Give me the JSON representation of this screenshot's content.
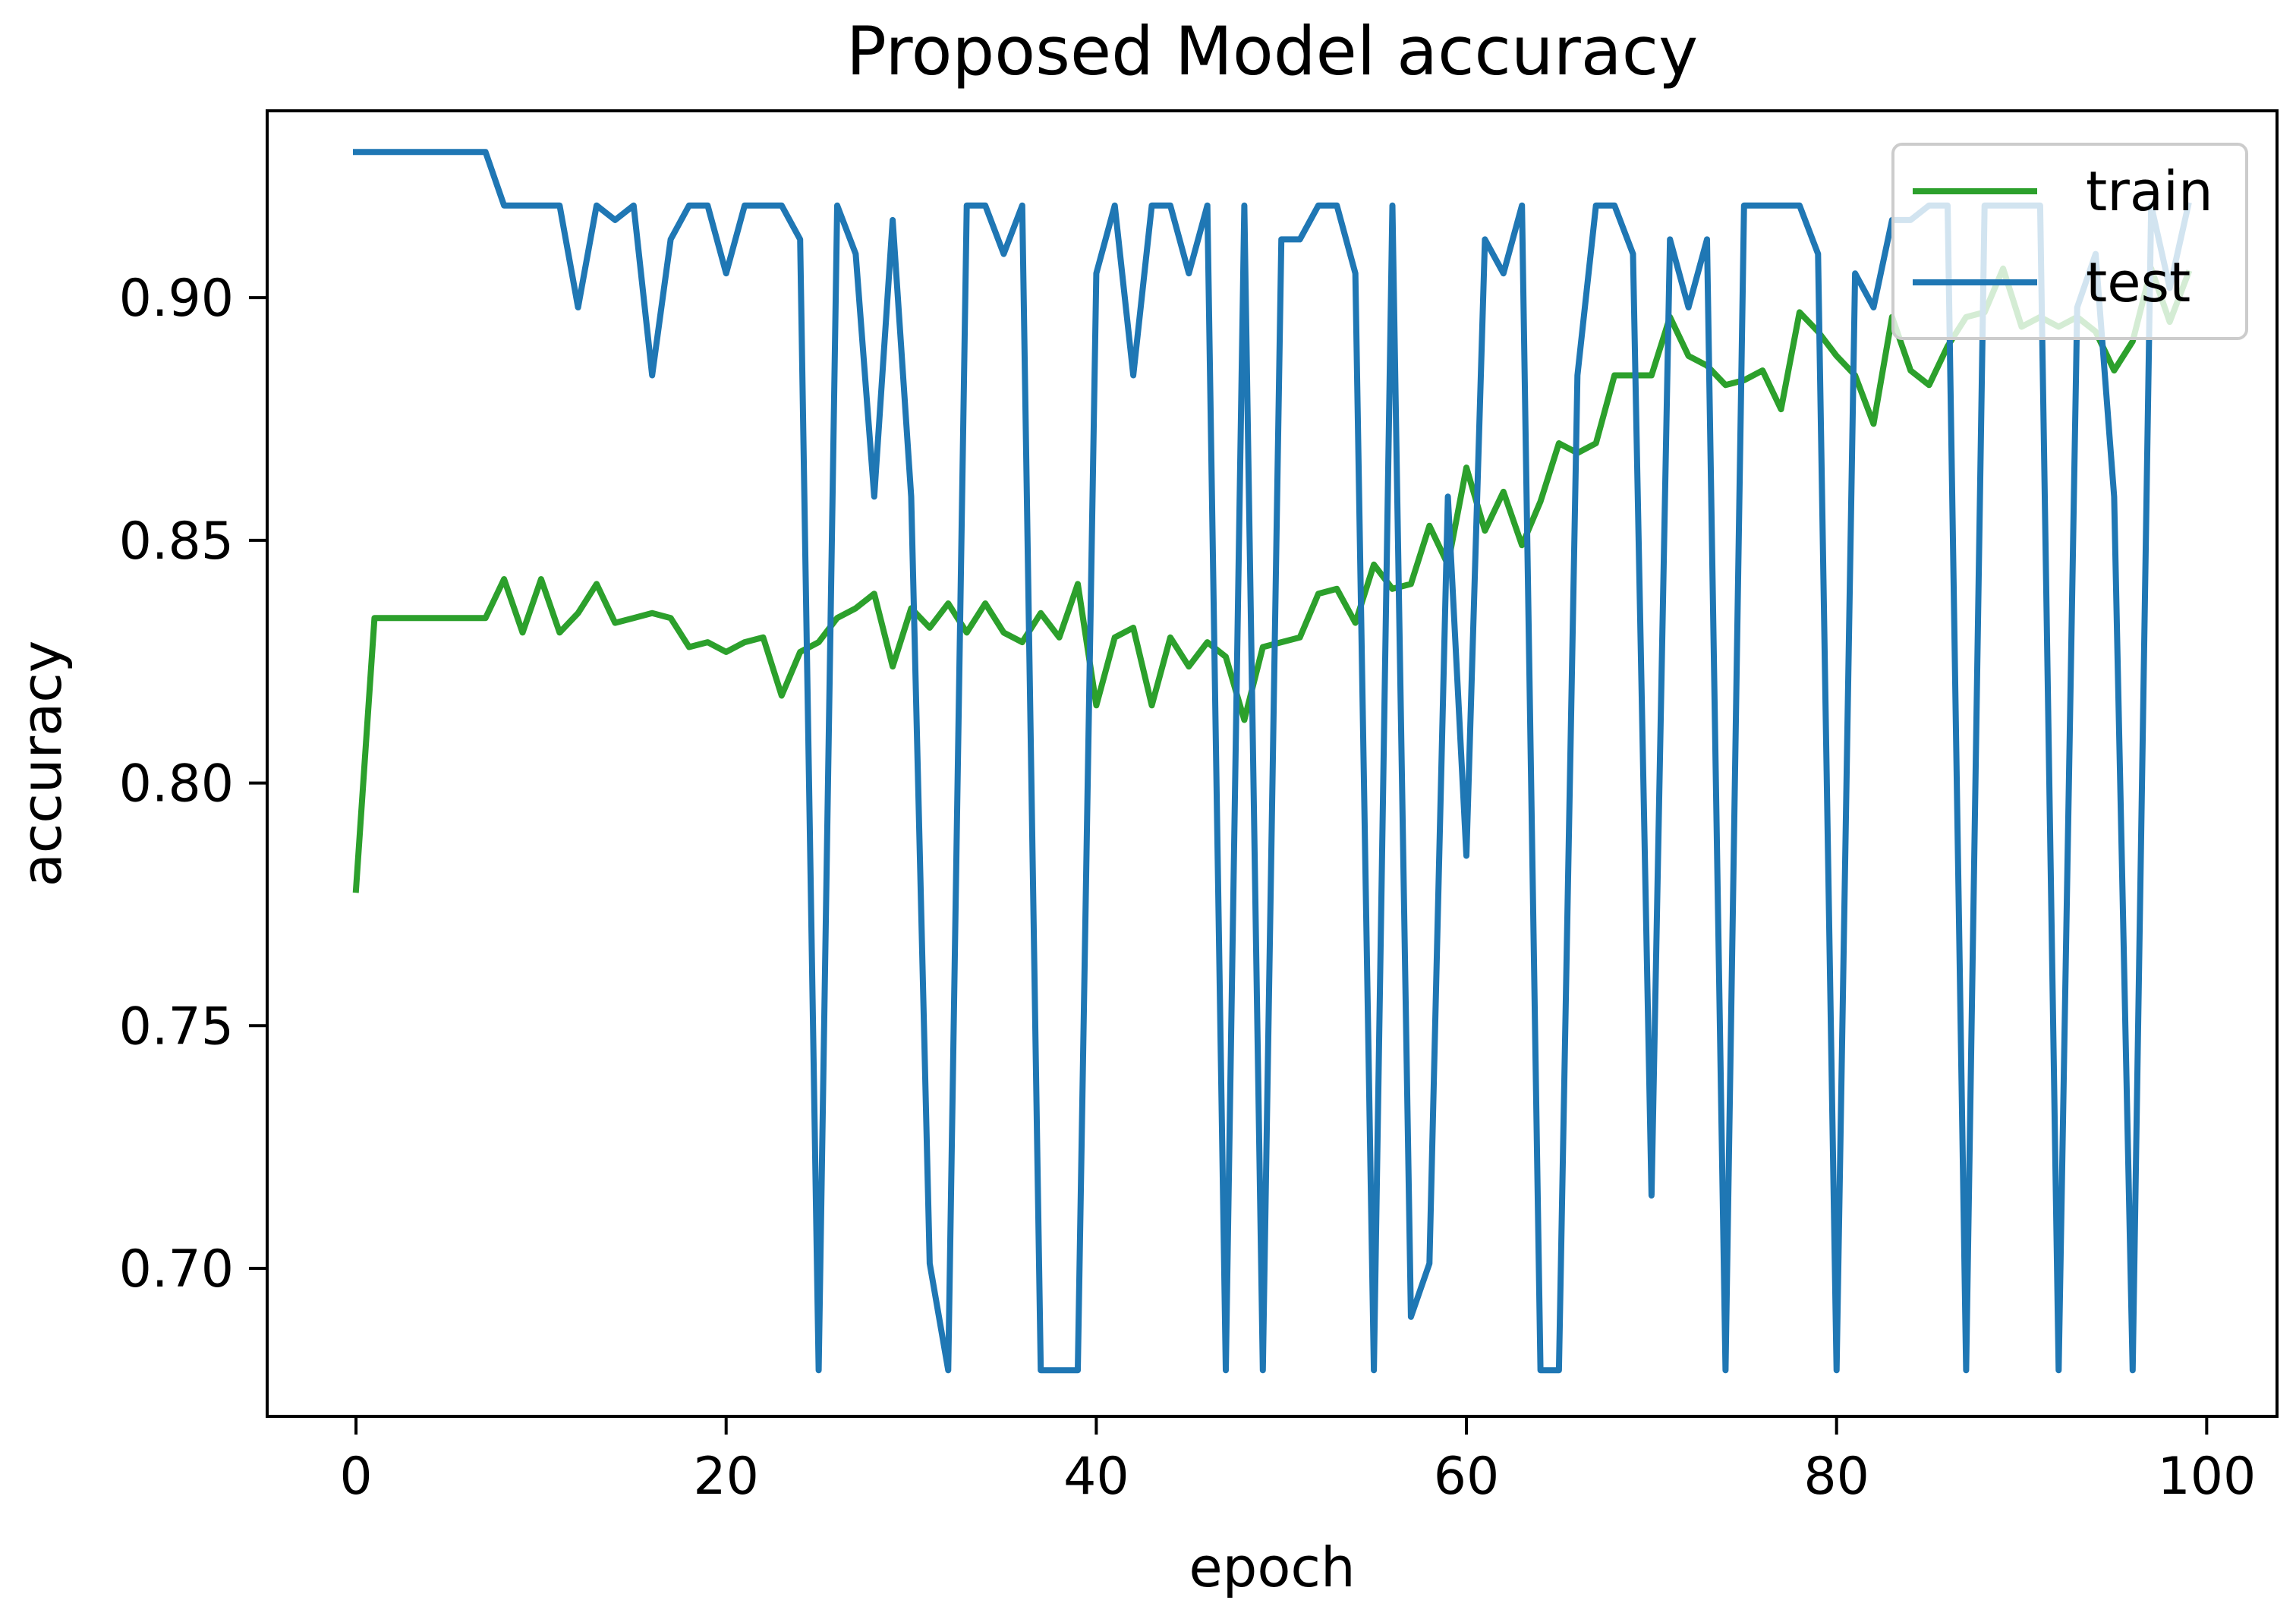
{
  "chart_data": {
    "type": "line",
    "title": "Proposed Model accuracy",
    "xlabel": "epoch",
    "ylabel": "accuracy",
    "xlim": [
      -4.8,
      103.8
    ],
    "ylim": [
      0.6695,
      0.9385
    ],
    "xticks": [
      0,
      20,
      40,
      60,
      80,
      100
    ],
    "yticks": [
      0.7,
      0.75,
      0.8,
      0.85,
      0.9
    ],
    "xtick_labels": [
      "0",
      "20",
      "40",
      "60",
      "80",
      "100"
    ],
    "ytick_labels": [
      "0.70",
      "0.75",
      "0.80",
      "0.85",
      "0.90"
    ],
    "legend_position": "top-right",
    "grid": false,
    "series": [
      {
        "name": "train",
        "color": "#2ca02c",
        "values": [
          0.778,
          0.834,
          0.834,
          0.834,
          0.834,
          0.834,
          0.834,
          0.834,
          0.842,
          0.831,
          0.842,
          0.831,
          0.835,
          0.841,
          0.833,
          0.834,
          0.835,
          0.834,
          0.828,
          0.829,
          0.827,
          0.829,
          0.83,
          0.818,
          0.827,
          0.829,
          0.834,
          0.836,
          0.839,
          0.824,
          0.836,
          0.832,
          0.837,
          0.831,
          0.837,
          0.831,
          0.829,
          0.835,
          0.83,
          0.841,
          0.816,
          0.83,
          0.832,
          0.816,
          0.83,
          0.824,
          0.829,
          0.826,
          0.813,
          0.828,
          0.829,
          0.83,
          0.839,
          0.84,
          0.833,
          0.845,
          0.84,
          0.841,
          0.853,
          0.845,
          0.865,
          0.852,
          0.86,
          0.849,
          0.858,
          0.87,
          0.868,
          0.87,
          0.884,
          0.884,
          0.884,
          0.896,
          0.888,
          0.886,
          0.882,
          0.883,
          0.885,
          0.877,
          0.897,
          0.893,
          0.888,
          0.884,
          0.874,
          0.896,
          0.885,
          0.882,
          0.89,
          0.896,
          0.897,
          0.906,
          0.894,
          0.896,
          0.894,
          0.896,
          0.893,
          0.885,
          0.891,
          0.906,
          0.895,
          0.905
        ]
      },
      {
        "name": "test",
        "color": "#1f77b4",
        "values": [
          0.93,
          0.93,
          0.93,
          0.93,
          0.93,
          0.93,
          0.93,
          0.93,
          0.919,
          0.919,
          0.919,
          0.919,
          0.898,
          0.919,
          0.916,
          0.919,
          0.884,
          0.912,
          0.919,
          0.919,
          0.905,
          0.919,
          0.919,
          0.919,
          0.912,
          0.679,
          0.919,
          0.909,
          0.859,
          0.916,
          0.859,
          0.701,
          0.679,
          0.919,
          0.919,
          0.909,
          0.919,
          0.679,
          0.679,
          0.679,
          0.905,
          0.919,
          0.884,
          0.919,
          0.919,
          0.905,
          0.919,
          0.679,
          0.919,
          0.679,
          0.912,
          0.912,
          0.919,
          0.919,
          0.905,
          0.679,
          0.919,
          0.69,
          0.701,
          0.859,
          0.785,
          0.912,
          0.905,
          0.919,
          0.679,
          0.679,
          0.884,
          0.919,
          0.919,
          0.909,
          0.715,
          0.912,
          0.898,
          0.912,
          0.679,
          0.919,
          0.919,
          0.919,
          0.919,
          0.909,
          0.679,
          0.905,
          0.898,
          0.916,
          0.916,
          0.919,
          0.919,
          0.679,
          0.919,
          0.919,
          0.919,
          0.919,
          0.679,
          0.898,
          0.909,
          0.859,
          0.679,
          0.919,
          0.902,
          0.919
        ]
      }
    ]
  }
}
